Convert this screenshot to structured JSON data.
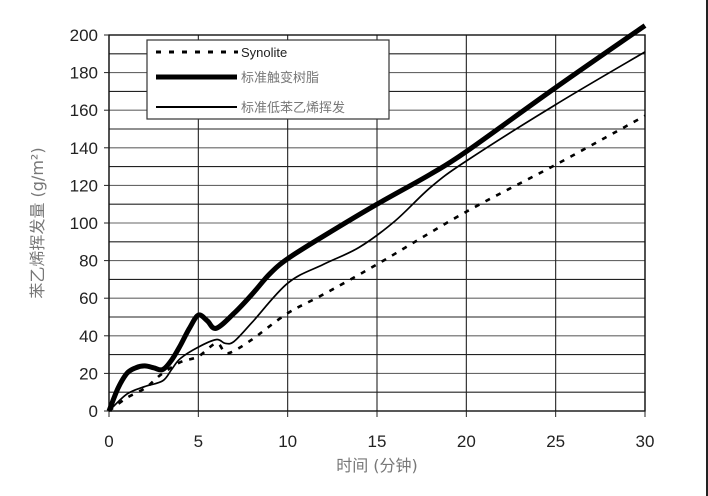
{
  "chart_data": {
    "type": "line",
    "title": "",
    "xlabel": "时间 (分钟)",
    "ylabel": "苯乙烯挥发量 (g/m²)",
    "xlim": [
      0,
      30
    ],
    "ylim": [
      0,
      200
    ],
    "x_ticks": [
      "0",
      "5",
      "10",
      "15",
      "20",
      "25",
      "30"
    ],
    "y_ticks": [
      "0",
      "20",
      "40",
      "60",
      "80",
      "100",
      "120",
      "140",
      "160",
      "180",
      "200"
    ],
    "grid": {
      "horizontal_every": 10,
      "vertical_every": 5
    },
    "legend_position": "upper-left (inside)",
    "series": [
      {
        "name": "Synolite",
        "style": "dotted",
        "x": [
          0,
          1,
          2,
          2.5,
          3,
          4,
          5,
          6,
          6.5,
          7,
          8,
          10,
          12,
          15,
          20,
          25,
          30
        ],
        "values": [
          0,
          7,
          12,
          16,
          20,
          26,
          29,
          36,
          31,
          32,
          38,
          52,
          62,
          78,
          106,
          131,
          157
        ]
      },
      {
        "name": "标准触变树脂",
        "style": "thick",
        "x": [
          0,
          0.5,
          1,
          1.5,
          2,
          2.5,
          3,
          3.5,
          4,
          4.5,
          5,
          5.5,
          6,
          7,
          8,
          9,
          10,
          12,
          15,
          18,
          20,
          25,
          30
        ],
        "values": [
          0,
          12,
          20,
          23,
          24,
          23,
          22,
          27,
          35,
          44,
          51,
          48,
          44,
          52,
          62,
          73,
          81,
          93,
          110,
          126,
          138,
          172,
          205
        ]
      },
      {
        "name": "标准低苯乙烯挥发",
        "style": "thin",
        "x": [
          0,
          1,
          2,
          3,
          3.5,
          4,
          5,
          6,
          6.5,
          7,
          8,
          10,
          12,
          14,
          16,
          18,
          20,
          25,
          30
        ],
        "values": [
          0,
          9,
          13,
          16,
          22,
          28,
          34,
          38,
          36,
          37,
          47,
          68,
          78,
          87,
          101,
          119,
          133,
          163,
          191
        ]
      }
    ]
  },
  "axes": {
    "x_title": "时间 (分钟)",
    "y_title": "苯乙烯挥发量 (g/m²)"
  },
  "legend": [
    {
      "label": "Synolite",
      "style": "dotted"
    },
    {
      "label": "标准触变树脂",
      "style": "thick"
    },
    {
      "label": "标准低苯乙烯挥发",
      "style": "thin"
    }
  ],
  "colors": {
    "line": "#000000",
    "grid": "#555555",
    "tick_text": "#222222",
    "axis_title": "#777777"
  }
}
